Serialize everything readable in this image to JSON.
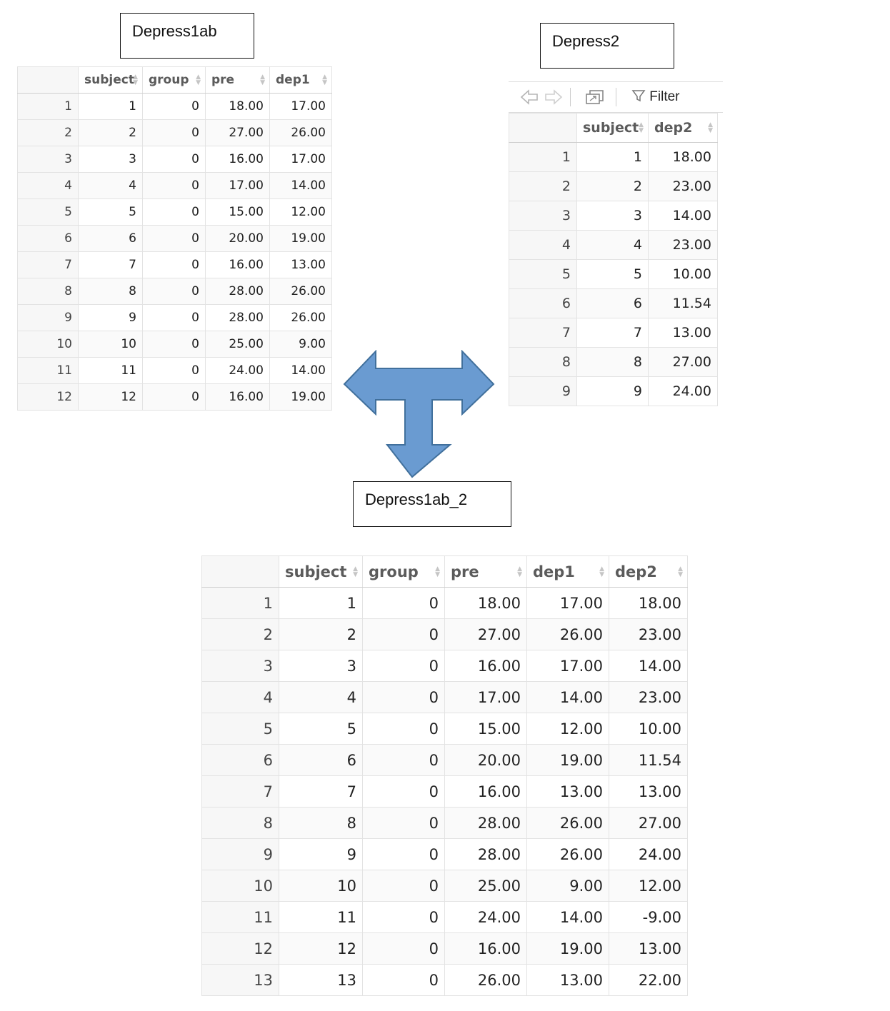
{
  "labels": {
    "depress1ab": "Depress1ab",
    "depress2": "Depress2",
    "depress1ab_2": "Depress1ab_2"
  },
  "toolbar": {
    "filter_label": "Filter",
    "icons": [
      "back-arrow-icon",
      "forward-arrow-icon",
      "popout-icon",
      "filter-icon"
    ]
  },
  "depress1ab": {
    "columns": [
      "subject",
      "group",
      "pre",
      "dep1"
    ],
    "rows": [
      [
        "1",
        "1",
        "0",
        "18.00",
        "17.00"
      ],
      [
        "2",
        "2",
        "0",
        "27.00",
        "26.00"
      ],
      [
        "3",
        "3",
        "0",
        "16.00",
        "17.00"
      ],
      [
        "4",
        "4",
        "0",
        "17.00",
        "14.00"
      ],
      [
        "5",
        "5",
        "0",
        "15.00",
        "12.00"
      ],
      [
        "6",
        "6",
        "0",
        "20.00",
        "19.00"
      ],
      [
        "7",
        "7",
        "0",
        "16.00",
        "13.00"
      ],
      [
        "8",
        "8",
        "0",
        "28.00",
        "26.00"
      ],
      [
        "9",
        "9",
        "0",
        "28.00",
        "26.00"
      ],
      [
        "10",
        "10",
        "0",
        "25.00",
        "9.00"
      ],
      [
        "11",
        "11",
        "0",
        "24.00",
        "14.00"
      ],
      [
        "12",
        "12",
        "0",
        "16.00",
        "19.00"
      ]
    ]
  },
  "depress2": {
    "columns": [
      "subject",
      "dep2"
    ],
    "rows": [
      [
        "1",
        "1",
        "18.00"
      ],
      [
        "2",
        "2",
        "23.00"
      ],
      [
        "3",
        "3",
        "14.00"
      ],
      [
        "4",
        "4",
        "23.00"
      ],
      [
        "5",
        "5",
        "10.00"
      ],
      [
        "6",
        "6",
        "11.54"
      ],
      [
        "7",
        "7",
        "13.00"
      ],
      [
        "8",
        "8",
        "27.00"
      ],
      [
        "9",
        "9",
        "24.00"
      ]
    ]
  },
  "depress1ab_2": {
    "columns": [
      "subject",
      "group",
      "pre",
      "dep1",
      "dep2"
    ],
    "rows": [
      [
        "1",
        "1",
        "0",
        "18.00",
        "17.00",
        "18.00"
      ],
      [
        "2",
        "2",
        "0",
        "27.00",
        "26.00",
        "23.00"
      ],
      [
        "3",
        "3",
        "0",
        "16.00",
        "17.00",
        "14.00"
      ],
      [
        "4",
        "4",
        "0",
        "17.00",
        "14.00",
        "23.00"
      ],
      [
        "5",
        "5",
        "0",
        "15.00",
        "12.00",
        "10.00"
      ],
      [
        "6",
        "6",
        "0",
        "20.00",
        "19.00",
        "11.54"
      ],
      [
        "7",
        "7",
        "0",
        "16.00",
        "13.00",
        "13.00"
      ],
      [
        "8",
        "8",
        "0",
        "28.00",
        "26.00",
        "27.00"
      ],
      [
        "9",
        "9",
        "0",
        "28.00",
        "26.00",
        "24.00"
      ],
      [
        "10",
        "10",
        "0",
        "25.00",
        "9.00",
        "12.00"
      ],
      [
        "11",
        "11",
        "0",
        "24.00",
        "14.00",
        "-9.00"
      ],
      [
        "12",
        "12",
        "0",
        "16.00",
        "19.00",
        "13.00"
      ],
      [
        "13",
        "13",
        "0",
        "26.00",
        "13.00",
        "22.00"
      ]
    ]
  },
  "colors": {
    "arrow_fill": "#6a9bd1",
    "arrow_stroke": "#41709c"
  }
}
